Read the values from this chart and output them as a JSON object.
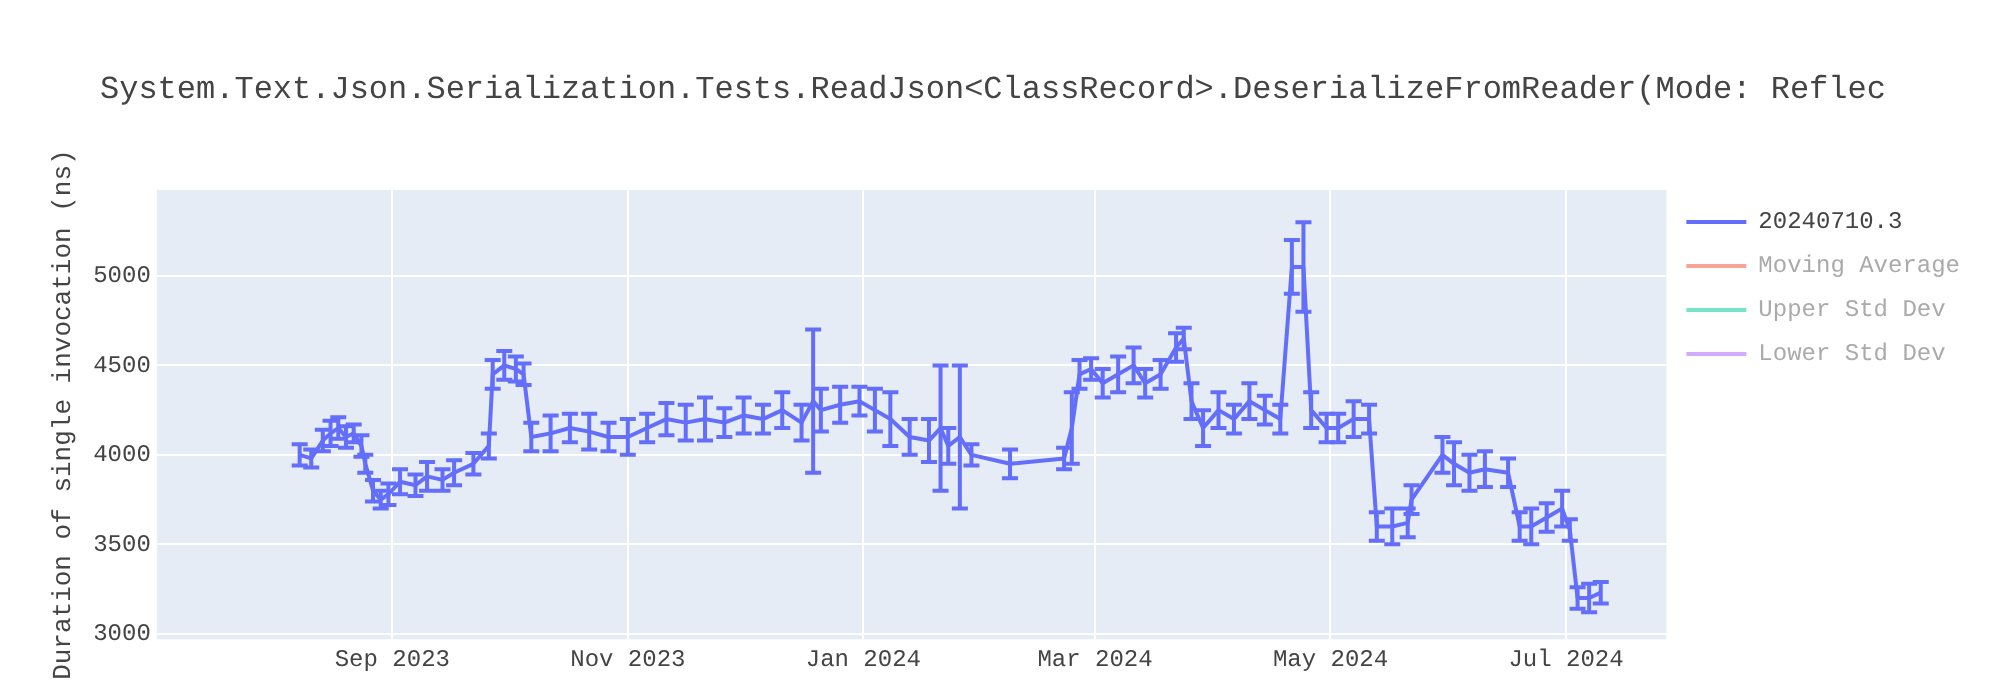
{
  "chart_data": {
    "type": "line",
    "title": "System.Text.Json.Serialization.Tests.ReadJson<ClassRecord>.DeserializeFromReader(Mode: Reflec",
    "ylabel": "Duration of single invocation (ns)",
    "x": [
      "2023-08-08",
      "2023-08-11",
      "2023-08-14",
      "2023-08-16",
      "2023-08-18",
      "2023-08-20",
      "2023-08-22",
      "2023-08-24",
      "2023-08-25",
      "2023-08-27",
      "2023-08-29",
      "2023-08-31",
      "2023-09-03",
      "2023-09-07",
      "2023-09-10",
      "2023-09-14",
      "2023-09-17",
      "2023-09-22",
      "2023-09-26",
      "2023-09-27",
      "2023-09-30",
      "2023-10-03",
      "2023-10-05",
      "2023-10-07",
      "2023-10-12",
      "2023-10-17",
      "2023-10-22",
      "2023-10-27",
      "2023-11-01",
      "2023-11-06",
      "2023-11-11",
      "2023-11-16",
      "2023-11-21",
      "2023-11-26",
      "2023-12-01",
      "2023-12-06",
      "2023-12-11",
      "2023-12-16",
      "2023-12-19",
      "2023-12-21",
      "2023-12-26",
      "2023-12-31",
      "2024-01-04",
      "2024-01-08",
      "2024-01-13",
      "2024-01-18",
      "2024-01-21",
      "2024-01-23",
      "2024-01-26",
      "2024-01-29",
      "2024-02-08",
      "2024-02-22",
      "2024-02-24",
      "2024-02-26",
      "2024-02-29",
      "2024-03-03",
      "2024-03-07",
      "2024-03-11",
      "2024-03-14",
      "2024-03-18",
      "2024-03-22",
      "2024-03-24",
      "2024-03-26",
      "2024-03-29",
      "2024-04-02",
      "2024-04-06",
      "2024-04-10",
      "2024-04-14",
      "2024-04-18",
      "2024-04-21",
      "2024-04-24",
      "2024-04-26",
      "2024-04-30",
      "2024-05-03",
      "2024-05-07",
      "2024-05-11",
      "2024-05-13",
      "2024-05-17",
      "2024-05-21",
      "2024-05-22",
      "2024-05-30",
      "2024-06-02",
      "2024-06-06",
      "2024-06-10",
      "2024-06-16",
      "2024-06-19",
      "2024-06-22",
      "2024-06-26",
      "2024-06-30",
      "2024-07-02",
      "2024-07-04",
      "2024-07-07",
      "2024-07-10"
    ],
    "series": [
      {
        "name": "20240710.3",
        "color": "#636efa",
        "values": [
          4000,
          3980,
          4080,
          4120,
          4150,
          4100,
          4120,
          4050,
          3950,
          3800,
          3750,
          3780,
          3850,
          3830,
          3880,
          3860,
          3900,
          3950,
          4050,
          4450,
          4500,
          4480,
          4450,
          4100,
          4120,
          4150,
          4130,
          4100,
          4100,
          4150,
          4200,
          4180,
          4200,
          4180,
          4220,
          4200,
          4250,
          4180,
          4300,
          4250,
          4280,
          4300,
          4250,
          4200,
          4100,
          4080,
          4150,
          4050,
          4100,
          4000,
          3950,
          3980,
          4150,
          4450,
          4480,
          4400,
          4450,
          4500,
          4400,
          4450,
          4600,
          4650,
          4300,
          4150,
          4250,
          4200,
          4300,
          4250,
          4200,
          5050,
          5050,
          4250,
          4150,
          4150,
          4200,
          4200,
          3600,
          3600,
          3620,
          3750,
          4000,
          3950,
          3900,
          3920,
          3900,
          3600,
          3600,
          3650,
          3700,
          3580,
          3200,
          3200,
          3230
        ],
        "errors": [
          60,
          50,
          60,
          70,
          60,
          60,
          50,
          60,
          50,
          60,
          50,
          60,
          70,
          60,
          80,
          60,
          70,
          60,
          70,
          80,
          80,
          70,
          60,
          80,
          100,
          80,
          100,
          80,
          100,
          80,
          90,
          100,
          120,
          80,
          100,
          80,
          100,
          100,
          400,
          120,
          100,
          80,
          120,
          150,
          100,
          120,
          350,
          100,
          400,
          60,
          80,
          60,
          200,
          80,
          60,
          80,
          100,
          100,
          80,
          80,
          80,
          60,
          100,
          100,
          100,
          80,
          100,
          80,
          80,
          150,
          250,
          100,
          80,
          80,
          100,
          80,
          80,
          100,
          80,
          80,
          100,
          120,
          100,
          100,
          80,
          80,
          100,
          80,
          100,
          60,
          60,
          80,
          60
        ]
      },
      {
        "name": "Moving Average",
        "color": "#ef553b",
        "values": [
          null,
          null,
          null,
          null,
          null,
          null,
          null,
          null,
          null,
          null,
          null,
          null,
          null,
          null,
          null,
          null,
          null,
          null,
          null,
          null,
          null,
          null,
          null,
          null,
          null,
          null,
          null,
          null,
          null,
          null,
          null,
          null,
          null,
          null,
          null,
          null,
          null,
          null,
          null,
          null,
          null,
          null,
          null,
          null,
          null,
          null,
          null,
          null,
          null,
          null,
          null,
          null,
          null,
          null,
          null,
          null,
          null,
          null,
          null,
          null,
          null,
          null,
          null,
          null,
          null,
          null,
          null,
          null,
          null,
          null,
          null,
          null,
          null,
          null,
          null,
          null,
          null,
          null,
          null,
          null,
          null,
          null,
          null,
          null,
          null,
          null,
          null,
          null,
          null,
          null,
          null,
          null,
          null
        ]
      },
      {
        "name": "Upper Std Dev",
        "color": "#00cc96",
        "values": [
          null,
          null,
          null,
          null,
          null,
          null,
          null,
          null,
          null,
          null,
          null,
          null,
          null,
          null,
          null,
          null,
          null,
          null,
          null,
          null,
          null,
          null,
          null,
          null,
          null,
          null,
          null,
          null,
          null,
          null,
          null,
          null,
          null,
          null,
          null,
          null,
          null,
          null,
          null,
          null,
          null,
          null,
          null,
          null,
          null,
          null,
          null,
          null,
          null,
          null,
          null,
          null,
          null,
          null,
          null,
          null,
          null,
          null,
          null,
          null,
          null,
          null,
          null,
          null,
          null,
          null,
          null,
          null,
          null,
          null,
          null,
          null,
          null,
          null,
          null,
          null,
          null,
          null,
          null,
          null,
          null,
          null,
          null,
          null,
          null,
          null,
          null,
          null,
          null,
          null,
          null,
          null,
          null
        ]
      },
      {
        "name": "Lower Std Dev",
        "color": "#ab63fa",
        "values": [
          null,
          null,
          null,
          null,
          null,
          null,
          null,
          null,
          null,
          null,
          null,
          null,
          null,
          null,
          null,
          null,
          null,
          null,
          null,
          null,
          null,
          null,
          null,
          null,
          null,
          null,
          null,
          null,
          null,
          null,
          null,
          null,
          null,
          null,
          null,
          null,
          null,
          null,
          null,
          null,
          null,
          null,
          null,
          null,
          null,
          null,
          null,
          null,
          null,
          null,
          null,
          null,
          null,
          null,
          null,
          null,
          null,
          null,
          null,
          null,
          null,
          null,
          null,
          null,
          null,
          null,
          null,
          null,
          null,
          null,
          null,
          null,
          null,
          null,
          null,
          null,
          null,
          null,
          null,
          null,
          null,
          null,
          null,
          null,
          null,
          null,
          null,
          null,
          null,
          null,
          null,
          null,
          null
        ]
      }
    ],
    "xlim": [
      "2023-07-02",
      "2024-07-27"
    ],
    "xticks": [
      {
        "value": "2023-09-01",
        "label": "Sep 2023"
      },
      {
        "value": "2023-11-01",
        "label": "Nov 2023"
      },
      {
        "value": "2024-01-01",
        "label": "Jan 2024"
      },
      {
        "value": "2024-03-01",
        "label": "Mar 2024"
      },
      {
        "value": "2024-05-01",
        "label": "May 2024"
      },
      {
        "value": "2024-07-01",
        "label": "Jul 2024"
      }
    ],
    "ylim": [
      2970,
      5480
    ],
    "yticks": [
      3000,
      3500,
      4000,
      4500,
      5000
    ],
    "grid": true,
    "legend": "right",
    "marker": "none",
    "line_style": "solid"
  }
}
